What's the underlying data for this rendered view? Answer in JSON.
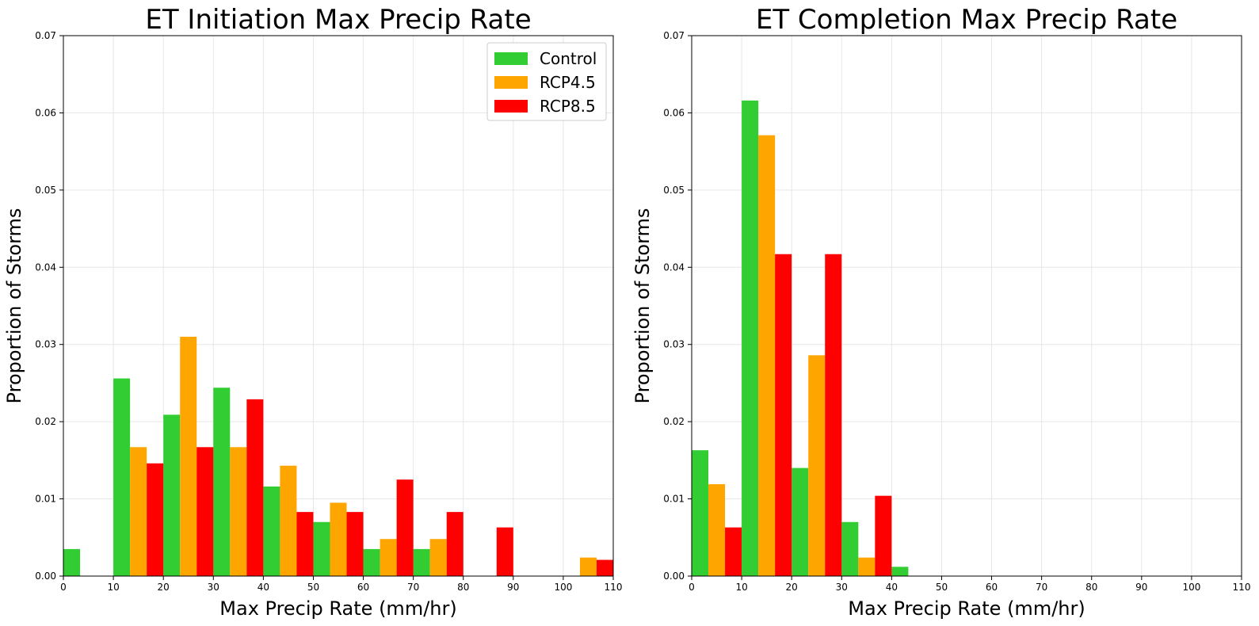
{
  "chart_data": [
    {
      "type": "bar",
      "title": "ET Initiation Max Precip Rate",
      "xlabel": "Max Precip Rate (mm/hr)",
      "ylabel": "Proportion of Storms",
      "xlim": [
        0,
        110
      ],
      "ylim": [
        0,
        0.07
      ],
      "xticks": [
        "0",
        "10",
        "20",
        "30",
        "40",
        "50",
        "60",
        "70",
        "80",
        "90",
        "100",
        "110"
      ],
      "yticks": [
        "0.00",
        "0.01",
        "0.02",
        "0.03",
        "0.04",
        "0.05",
        "0.06",
        "0.07"
      ],
      "grid": true,
      "legend": "top-right",
      "bin_edges": [
        0,
        10,
        20,
        30,
        40,
        50,
        60,
        70,
        80,
        90,
        100,
        110
      ],
      "series": [
        {
          "name": "Control",
          "color": "#32cd32",
          "values": [
            0.0035,
            0.0256,
            0.0209,
            0.0244,
            0.0116,
            0.007,
            0.0035,
            0.0035,
            0,
            0,
            0
          ]
        },
        {
          "name": "RCP4.5",
          "color": "#ffa500",
          "values": [
            0,
            0.0167,
            0.031,
            0.0167,
            0.0143,
            0.0095,
            0.0048,
            0.0048,
            0,
            0,
            0.0024
          ]
        },
        {
          "name": "RCP8.5",
          "color": "#ff0000",
          "values": [
            0,
            0.0146,
            0.0167,
            0.0229,
            0.0083,
            0.0083,
            0.0125,
            0.0083,
            0.0063,
            0,
            0.0021
          ]
        }
      ]
    },
    {
      "type": "bar",
      "title": "ET Completion Max Precip Rate",
      "xlabel": "Max Precip Rate (mm/hr)",
      "ylabel": "Proportion of Storms",
      "xlim": [
        0,
        110
      ],
      "ylim": [
        0,
        0.07
      ],
      "xticks": [
        "0",
        "10",
        "20",
        "30",
        "40",
        "50",
        "60",
        "70",
        "80",
        "90",
        "100",
        "110"
      ],
      "yticks": [
        "0.00",
        "0.01",
        "0.02",
        "0.03",
        "0.04",
        "0.05",
        "0.06",
        "0.07"
      ],
      "grid": true,
      "bin_edges": [
        0,
        10,
        20,
        30,
        40,
        50,
        60,
        70,
        80,
        90,
        100,
        110
      ],
      "series": [
        {
          "name": "Control",
          "color": "#32cd32",
          "values": [
            0.0163,
            0.0616,
            0.014,
            0.007,
            0.0012,
            0,
            0,
            0,
            0,
            0,
            0
          ]
        },
        {
          "name": "RCP4.5",
          "color": "#ffa500",
          "values": [
            0.0119,
            0.0571,
            0.0286,
            0.0024,
            0,
            0,
            0,
            0,
            0,
            0,
            0
          ]
        },
        {
          "name": "RCP8.5",
          "color": "#ff0000",
          "values": [
            0.0063,
            0.0417,
            0.0417,
            0.0104,
            0,
            0,
            0,
            0,
            0,
            0,
            0
          ]
        }
      ]
    }
  ]
}
